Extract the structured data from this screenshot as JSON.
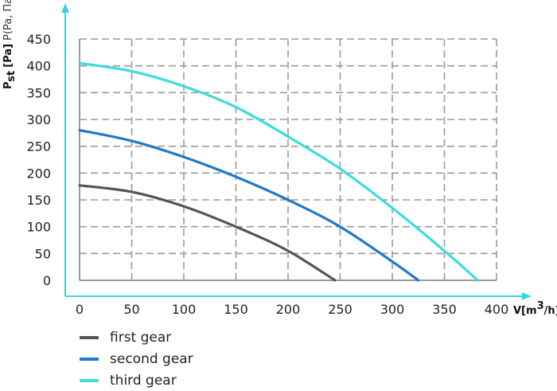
{
  "chart_data": {
    "type": "line",
    "xlabel_main": "V[m",
    "xlabel_sup": "3",
    "xlabel_end": "/h]",
    "ylabel_main": "P",
    "ylabel_sub": "st",
    "ylabel_unit": "[Pa]",
    "ylabel_alt": "P(Pa, Па)",
    "xlim": [
      0,
      400
    ],
    "ylim": [
      0,
      450
    ],
    "x_ticks": [
      "0",
      "50",
      "100",
      "150",
      "200",
      "250",
      "300",
      "350",
      "400"
    ],
    "y_ticks": [
      "0",
      "50",
      "100",
      "150",
      "200",
      "250",
      "300",
      "350",
      "400",
      "450"
    ],
    "grid": true,
    "legend_position": "bottom-left",
    "series": [
      {
        "name": "first gear",
        "color": "#555555",
        "x": [
          0,
          50,
          100,
          150,
          200,
          245
        ],
        "y": [
          177,
          165,
          138,
          100,
          55,
          0
        ]
      },
      {
        "name": "second gear",
        "color": "#1f7ac9",
        "x": [
          0,
          50,
          100,
          150,
          200,
          250,
          300,
          325
        ],
        "y": [
          280,
          260,
          230,
          193,
          150,
          100,
          35,
          0
        ]
      },
      {
        "name": "third gear",
        "color": "#3edcdc",
        "x": [
          0,
          50,
          100,
          150,
          200,
          250,
          300,
          350,
          382
        ],
        "y": [
          405,
          390,
          362,
          323,
          268,
          208,
          135,
          55,
          0
        ]
      }
    ]
  }
}
